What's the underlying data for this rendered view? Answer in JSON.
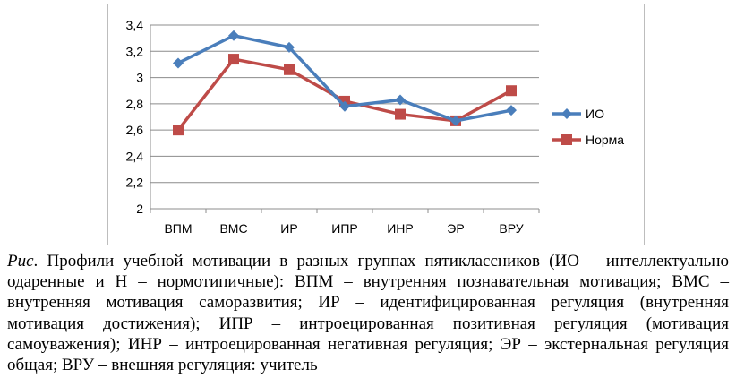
{
  "chart_data": {
    "type": "line",
    "title": "",
    "xlabel": "",
    "ylabel": "",
    "categories": [
      "ВПМ",
      "ВМС",
      "ИР",
      "ИПР",
      "ИНР",
      "ЭР",
      "ВРУ"
    ],
    "ylim": [
      2,
      3.4
    ],
    "yticks": [
      "2",
      "2,2",
      "2,4",
      "2,6",
      "2,8",
      "3",
      "3,2",
      "3,4"
    ],
    "grid": true,
    "legend_position": "right",
    "series": [
      {
        "name": "ИО",
        "color": "#4a7ebb",
        "marker": "diamond",
        "values": [
          3.11,
          3.32,
          3.23,
          2.78,
          2.83,
          2.67,
          2.75
        ]
      },
      {
        "name": "Норма",
        "color": "#be4b48",
        "marker": "square",
        "values": [
          2.6,
          3.14,
          3.06,
          2.82,
          2.72,
          2.67,
          2.9
        ]
      }
    ]
  },
  "caption": {
    "label": "Рис",
    "text": ". Профили учебной мотивации в разных группах пятиклассников (ИО – интеллектуально одаренные и Н – нормотипичные): ВПМ – внутренняя познавательная мотивация; ВМС – внутренняя мотивация саморазвития; ИР – идентифицированная регуляция (внутренняя мотивация достижения); ИПР – интроецированная позитивная регуляция (мотивация самоуважения); ИНР – интроецированная негативная регуляция; ЭР – экстернальная регуляция общая; ВРУ – внешняя регуляция: учитель"
  }
}
